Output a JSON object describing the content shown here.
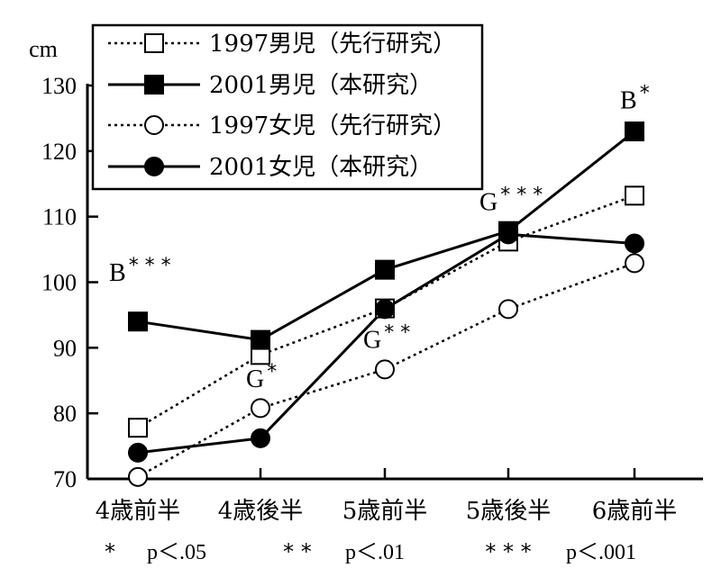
{
  "chart_data": {
    "type": "line",
    "unit": "cm",
    "ylim": [
      70,
      130
    ],
    "yticks": [
      "130",
      "120",
      "110",
      "100",
      "90",
      "80",
      "70"
    ],
    "categories": [
      "4歳前半",
      "4歳後半",
      "5歳前半",
      "5歳後半",
      "6歳前半"
    ],
    "series": [
      {
        "name": "1997男児（先行研究）",
        "values": [
          77.8,
          88.9,
          96.0,
          106.2,
          113.2
        ],
        "style": "dotted",
        "marker": "open-square"
      },
      {
        "name": "2001男児（本研究）",
        "values": [
          94.0,
          91.2,
          101.9,
          107.8,
          123.0
        ],
        "style": "solid",
        "marker": "filled-square"
      },
      {
        "name": "1997女児（先行研究）",
        "values": [
          70.3,
          80.8,
          86.7,
          95.9,
          102.9
        ],
        "style": "dotted",
        "marker": "open-circle"
      },
      {
        "name": "2001女児（本研究）",
        "values": [
          74.0,
          76.2,
          95.9,
          107.3,
          105.9
        ],
        "style": "solid",
        "marker": "filled-circle"
      }
    ],
    "annotations": [
      {
        "category": "4歳前半",
        "letter": "B",
        "stars": "***",
        "y": 100.2
      },
      {
        "category": "4歳後半",
        "letter": "G",
        "stars": "*",
        "y": 84.0
      },
      {
        "category": "5歳前半",
        "letter": "G",
        "stars": "**",
        "y": 90.0
      },
      {
        "category": "5歳後半",
        "letter": "G",
        "stars": "***",
        "y": 111.0
      },
      {
        "category": "6歳前半",
        "letter": "B",
        "stars": "*",
        "y": 126.5
      }
    ],
    "legend_position": "top-left",
    "grid": false
  },
  "significance": {
    "items": [
      {
        "stars": "*",
        "label": "p＜.05"
      },
      {
        "stars": "**",
        "label": "p＜.01"
      },
      {
        "stars": "***",
        "label": "p＜.001"
      }
    ]
  }
}
